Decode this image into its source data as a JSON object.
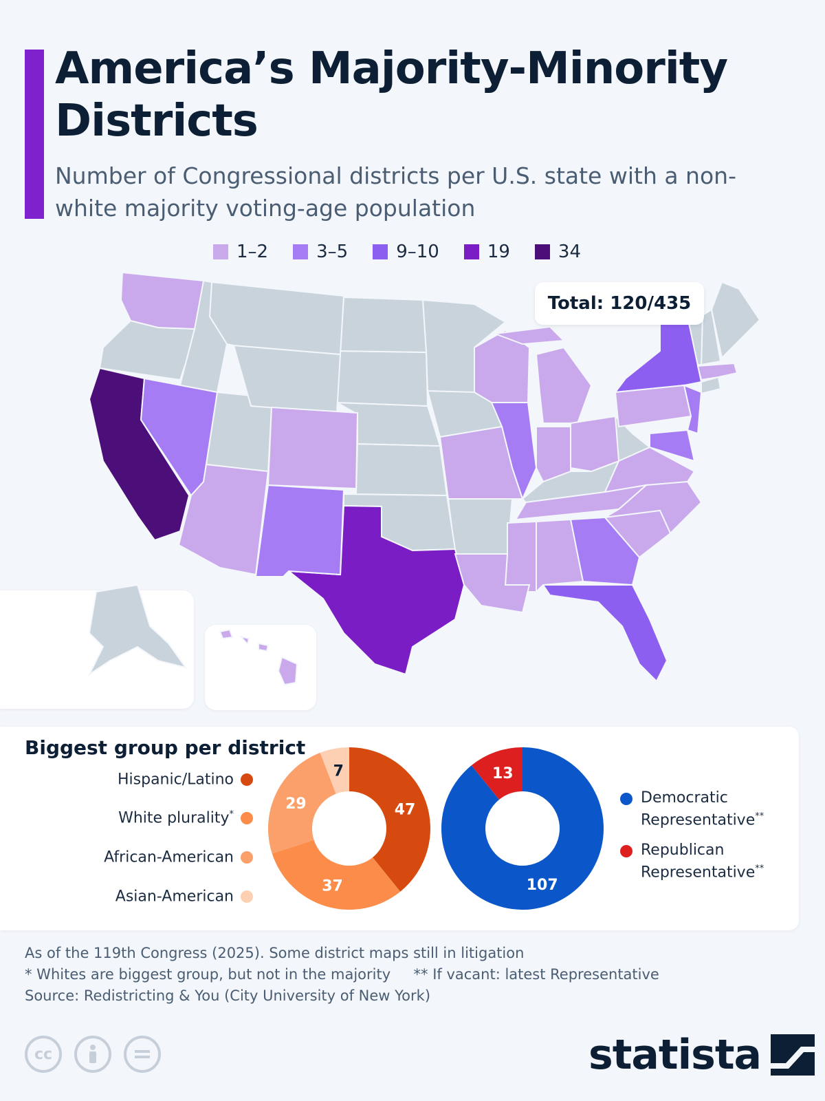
{
  "title": "America’s Majority-Minority Districts",
  "subtitle": "Number of Congressional districts per U.S. state with a non-white majority voting-age population",
  "total_label": "Total: 120/435",
  "map_legend": [
    {
      "label": "1–2",
      "color": "#c9a8ec"
    },
    {
      "label": "3–5",
      "color": "#a67cf5"
    },
    {
      "label": "9–10",
      "color": "#8d5ff0"
    },
    {
      "label": "19",
      "color": "#7b1dc4"
    },
    {
      "label": "34",
      "color": "#4c0f7a"
    }
  ],
  "map_colors": {
    "none": "#c8d3dc",
    "border": "#f3f6fa"
  },
  "states": [
    {
      "name": "California",
      "level": 5
    },
    {
      "name": "Texas",
      "level": 4
    },
    {
      "name": "New York",
      "level": 3
    },
    {
      "name": "Florida",
      "level": 3
    },
    {
      "name": "Nevada",
      "level": 2
    },
    {
      "name": "New Mexico",
      "level": 2
    },
    {
      "name": "Illinois",
      "level": 2
    },
    {
      "name": "Georgia",
      "level": 2
    },
    {
      "name": "New Jersey",
      "level": 2
    },
    {
      "name": "Maryland",
      "level": 2
    },
    {
      "name": "Washington",
      "level": 1
    },
    {
      "name": "Colorado",
      "level": 1
    },
    {
      "name": "Arizona",
      "level": 1
    },
    {
      "name": "Wisconsin",
      "level": 1
    },
    {
      "name": "Michigan",
      "level": 1
    },
    {
      "name": "Missouri",
      "level": 1
    },
    {
      "name": "Indiana",
      "level": 1
    },
    {
      "name": "Ohio",
      "level": 1
    },
    {
      "name": "Pennsylvania",
      "level": 1
    },
    {
      "name": "Massachusetts",
      "level": 1
    },
    {
      "name": "Virginia",
      "level": 1
    },
    {
      "name": "North Carolina",
      "level": 1
    },
    {
      "name": "Tennessee",
      "level": 1
    },
    {
      "name": "South Carolina",
      "level": 1
    },
    {
      "name": "Alabama",
      "level": 1
    },
    {
      "name": "Mississippi",
      "level": 1
    },
    {
      "name": "Louisiana",
      "level": 1
    },
    {
      "name": "Hawaii",
      "level": 1
    },
    {
      "name": "Alaska",
      "level": 0
    }
  ],
  "groups_panel": {
    "title": "Biggest group per district",
    "groups": [
      {
        "label": "Hispanic/Latino",
        "sup": "",
        "color": "#d64a10"
      },
      {
        "label": "White plurality",
        "sup": "*",
        "color": "#fb8c4a"
      },
      {
        "label": "African-American",
        "sup": "",
        "color": "#fba06a"
      },
      {
        "label": "Asian-American",
        "sup": "",
        "color": "#fdd0b4"
      }
    ]
  },
  "party_panel": {
    "parties": [
      {
        "label_line1": "Democratic",
        "label_line2": "Representative",
        "sup": "**",
        "color": "#0b57c9"
      },
      {
        "label_line1": "Republican",
        "label_line2": "Representative",
        "sup": "**",
        "color": "#de1f1f"
      }
    ]
  },
  "chart_data": [
    {
      "type": "pie",
      "categories": [
        "Hispanic/Latino",
        "African-American",
        "White plurality",
        "Asian-American"
      ],
      "values": [
        47,
        37,
        29,
        7
      ],
      "colors": [
        "#d64a10",
        "#fb8c4a",
        "#fba06a",
        "#fdd0b4"
      ],
      "label_colors": [
        "#ffffff",
        "#ffffff",
        "#ffffff",
        "#0d1f35"
      ]
    },
    {
      "type": "pie",
      "categories": [
        "Democratic Representative",
        "Republican Representative"
      ],
      "values": [
        107,
        13
      ],
      "colors": [
        "#0b57c9",
        "#de1f1f"
      ],
      "label_colors": [
        "#ffffff",
        "#ffffff"
      ]
    }
  ],
  "notes": {
    "line1": "As of the 119th Congress (2025). Some district maps still in litigation",
    "line2": "* Whites are biggest group, but not in the majority     ** If vacant: latest Representative",
    "source": "Source: Redistricting & You (City University of New York)"
  },
  "logo": "statista",
  "cc_icons": [
    "cc-icon",
    "by-icon",
    "nd-icon"
  ]
}
